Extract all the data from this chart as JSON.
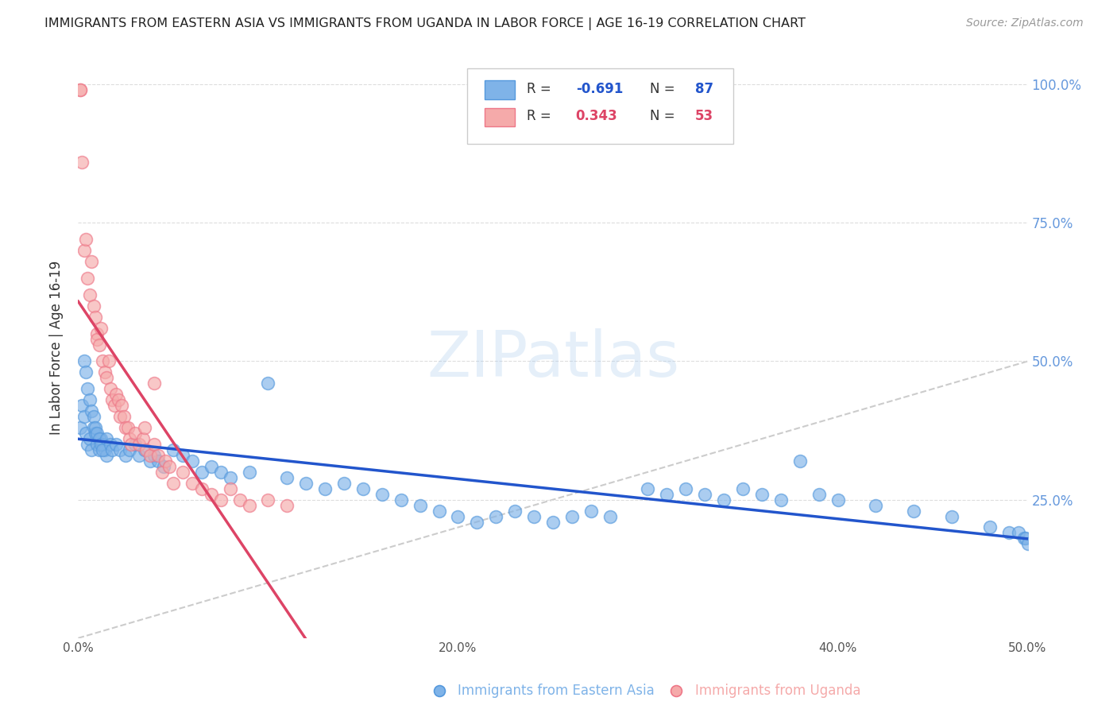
{
  "title": "IMMIGRANTS FROM EASTERN ASIA VS IMMIGRANTS FROM UGANDA IN LABOR FORCE | AGE 16-19 CORRELATION CHART",
  "source": "Source: ZipAtlas.com",
  "ylabel": "In Labor Force | Age 16-19",
  "xlim": [
    0.0,
    0.5
  ],
  "ylim": [
    0.0,
    1.05
  ],
  "blue_color": "#7FB3E8",
  "blue_edge_color": "#5599DD",
  "pink_color": "#F5AAAA",
  "pink_edge_color": "#EE7788",
  "blue_line_color": "#2255CC",
  "pink_line_color": "#DD4466",
  "diag_color": "#CCCCCC",
  "grid_color": "#DDDDDD",
  "right_tick_color": "#6699DD",
  "blue_R": -0.691,
  "blue_N": 87,
  "pink_R": 0.343,
  "pink_N": 53,
  "legend_label_blue": "Immigrants from Eastern Asia",
  "legend_label_pink": "Immigrants from Uganda",
  "watermark": "ZIPatlas",
  "blue_scatter_x": [
    0.001,
    0.002,
    0.003,
    0.004,
    0.005,
    0.006,
    0.007,
    0.008,
    0.009,
    0.01,
    0.011,
    0.012,
    0.013,
    0.014,
    0.015,
    0.003,
    0.004,
    0.005,
    0.006,
    0.007,
    0.008,
    0.009,
    0.01,
    0.011,
    0.012,
    0.013,
    0.015,
    0.017,
    0.018,
    0.02,
    0.022,
    0.025,
    0.027,
    0.03,
    0.032,
    0.035,
    0.038,
    0.04,
    0.042,
    0.045,
    0.05,
    0.055,
    0.06,
    0.065,
    0.07,
    0.075,
    0.08,
    0.09,
    0.1,
    0.11,
    0.12,
    0.13,
    0.14,
    0.15,
    0.16,
    0.17,
    0.18,
    0.19,
    0.2,
    0.21,
    0.22,
    0.23,
    0.24,
    0.25,
    0.26,
    0.27,
    0.28,
    0.3,
    0.31,
    0.32,
    0.33,
    0.34,
    0.35,
    0.36,
    0.37,
    0.38,
    0.39,
    0.4,
    0.42,
    0.44,
    0.46,
    0.48,
    0.49,
    0.495,
    0.498,
    0.499,
    0.5
  ],
  "blue_scatter_y": [
    0.38,
    0.42,
    0.4,
    0.37,
    0.35,
    0.36,
    0.34,
    0.38,
    0.37,
    0.35,
    0.34,
    0.36,
    0.35,
    0.34,
    0.33,
    0.5,
    0.48,
    0.45,
    0.43,
    0.41,
    0.4,
    0.38,
    0.37,
    0.36,
    0.35,
    0.34,
    0.36,
    0.35,
    0.34,
    0.35,
    0.34,
    0.33,
    0.34,
    0.35,
    0.33,
    0.34,
    0.32,
    0.33,
    0.32,
    0.31,
    0.34,
    0.33,
    0.32,
    0.3,
    0.31,
    0.3,
    0.29,
    0.3,
    0.46,
    0.29,
    0.28,
    0.27,
    0.28,
    0.27,
    0.26,
    0.25,
    0.24,
    0.23,
    0.22,
    0.21,
    0.22,
    0.23,
    0.22,
    0.21,
    0.22,
    0.23,
    0.22,
    0.27,
    0.26,
    0.27,
    0.26,
    0.25,
    0.27,
    0.26,
    0.25,
    0.32,
    0.26,
    0.25,
    0.24,
    0.23,
    0.22,
    0.2,
    0.19,
    0.19,
    0.18,
    0.18,
    0.17
  ],
  "pink_scatter_x": [
    0.001,
    0.001,
    0.002,
    0.003,
    0.004,
    0.005,
    0.006,
    0.007,
    0.008,
    0.009,
    0.01,
    0.01,
    0.011,
    0.012,
    0.013,
    0.014,
    0.015,
    0.016,
    0.017,
    0.018,
    0.019,
    0.02,
    0.021,
    0.022,
    0.023,
    0.024,
    0.025,
    0.026,
    0.027,
    0.028,
    0.03,
    0.032,
    0.034,
    0.035,
    0.036,
    0.038,
    0.04,
    0.042,
    0.044,
    0.046,
    0.048,
    0.05,
    0.055,
    0.06,
    0.065,
    0.07,
    0.075,
    0.08,
    0.085,
    0.09,
    0.1,
    0.11,
    0.04
  ],
  "pink_scatter_y": [
    0.99,
    0.99,
    0.86,
    0.7,
    0.72,
    0.65,
    0.62,
    0.68,
    0.6,
    0.58,
    0.55,
    0.54,
    0.53,
    0.56,
    0.5,
    0.48,
    0.47,
    0.5,
    0.45,
    0.43,
    0.42,
    0.44,
    0.43,
    0.4,
    0.42,
    0.4,
    0.38,
    0.38,
    0.36,
    0.35,
    0.37,
    0.35,
    0.36,
    0.38,
    0.34,
    0.33,
    0.35,
    0.33,
    0.3,
    0.32,
    0.31,
    0.28,
    0.3,
    0.28,
    0.27,
    0.26,
    0.25,
    0.27,
    0.25,
    0.24,
    0.25,
    0.24,
    0.46
  ]
}
